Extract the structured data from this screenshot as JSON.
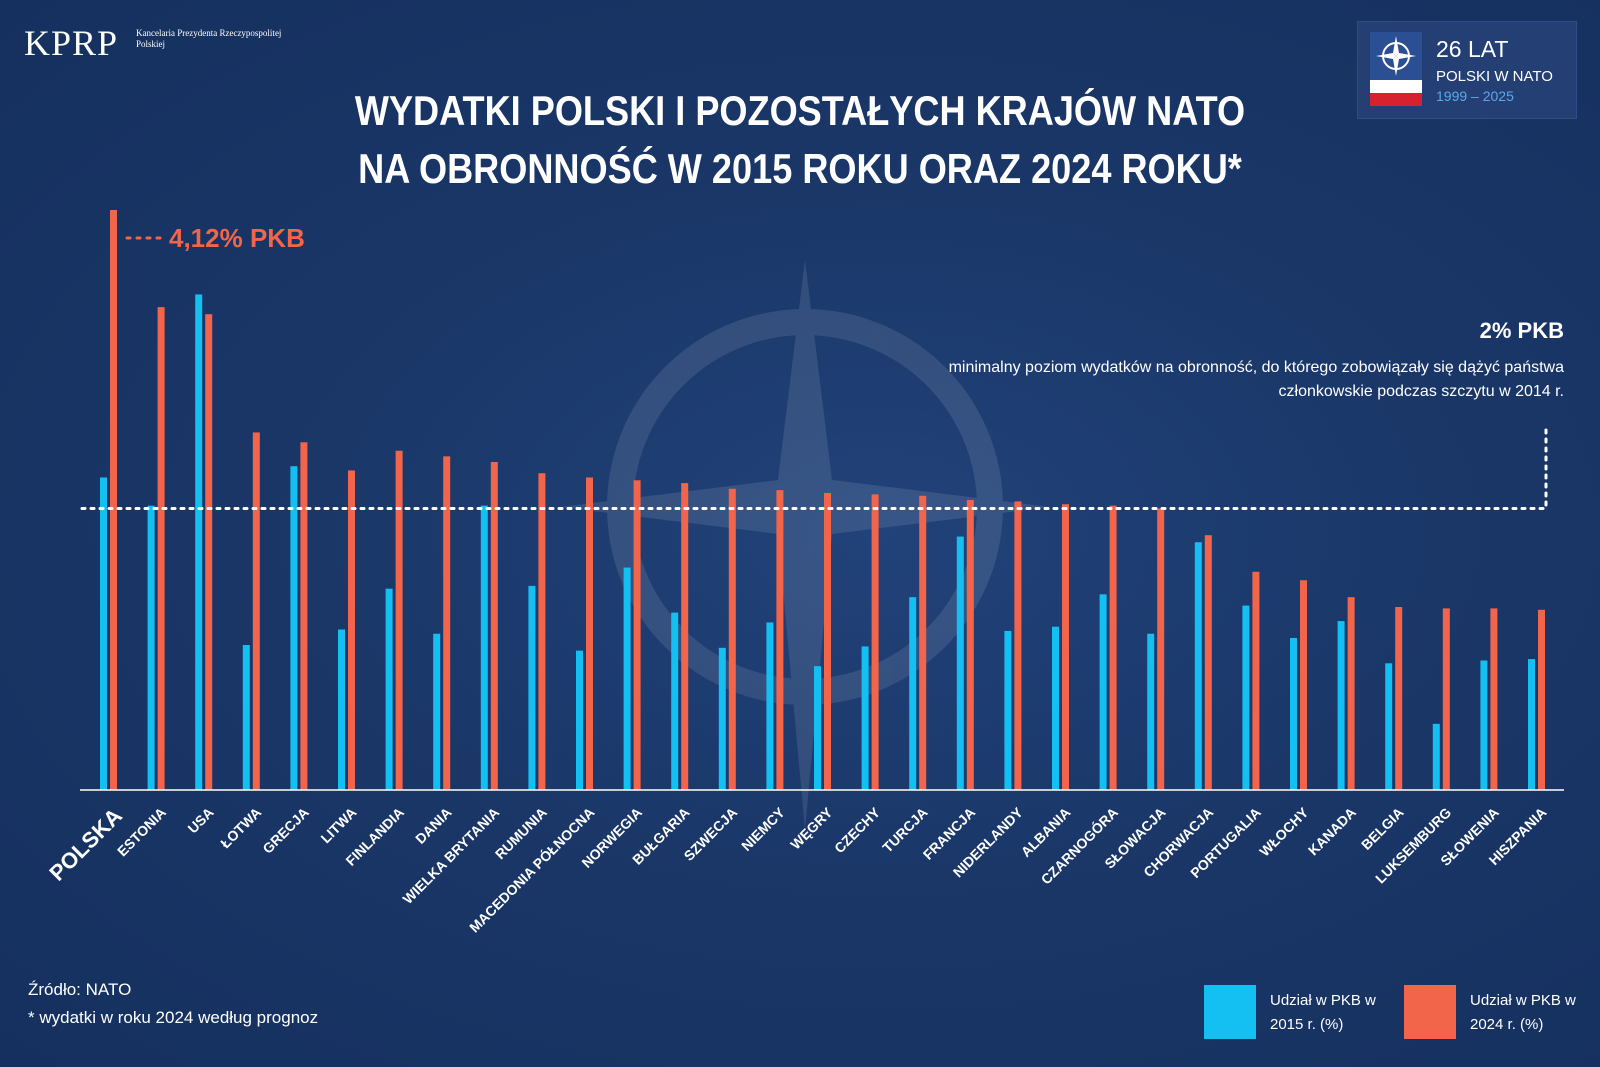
{
  "header": {
    "logo_text": "KPRP",
    "logo_subtitle": "Kancelaria Prezydenta Rzeczypospolitej Polskiej",
    "badge_line1": "26 LAT",
    "badge_line2": "POLSKI W NATO",
    "badge_line3": "1999 – 2025",
    "title_line1": "WYDATKI POLSKI I POZOSTAŁYCH KRAJÓW NATO",
    "title_line2": "NA OBRONNOŚĆ W 2015 ROKU ORAZ 2024 ROKU*"
  },
  "threshold": {
    "title": "2% PKB",
    "description": "minimalny poziom wydatków na obronność, do którego zobowiązały się dążyć państwa członkowskie podczas szczytu w 2014 r."
  },
  "footer": {
    "source": "Źródło: NATO",
    "footnote": "* wydatki w roku 2024 według prognoz"
  },
  "legend": {
    "label_2015": "Udział w PKB w 2015 r. (%)",
    "label_2024": "Udział w PKB w 2024 r. (%)"
  },
  "colors": {
    "background": "#1a3768",
    "series_2015": "#14bff2",
    "series_2024": "#f2654a",
    "annotation": "#f2654a"
  },
  "chart_data": {
    "type": "bar",
    "title": "WYDATKI POLSKI I POZOSTAŁYCH KRAJÓW NATO NA OBRONNOŚĆ W 2015 ROKU ORAZ 2024 ROKU*",
    "categories": [
      "POLSKA",
      "ESTONIA",
      "USA",
      "ŁOTWA",
      "GRECJA",
      "LITWA",
      "FINLANDIA",
      "DANIA",
      "WIELKA BRYTANIA",
      "RUMUNIA",
      "MACEDONIA PÓŁNOCNA",
      "NORWEGIA",
      "BUŁGARIA",
      "SZWECJA",
      "NIEMCY",
      "WĘGRY",
      "CZECHY",
      "TURCJA",
      "FRANCJA",
      "NIDERLANDY",
      "ALBANIA",
      "CZARNOGÓRA",
      "SŁOWACJA",
      "CHORWACJA",
      "PORTUGALIA",
      "WŁOCHY",
      "KANADA",
      "BELGIA",
      "LUKSEMBURG",
      "SŁOWENIA",
      "HISZPANIA"
    ],
    "highlight_category": "POLSKA",
    "series": [
      {
        "name": "Udział w PKB w 2015 r. (%)",
        "color": "#14bff2",
        "values": [
          2.22,
          2.02,
          3.52,
          1.03,
          2.3,
          1.14,
          1.43,
          1.11,
          2.02,
          1.45,
          0.99,
          1.58,
          1.26,
          1.01,
          1.19,
          0.88,
          1.02,
          1.37,
          1.8,
          1.13,
          1.16,
          1.39,
          1.11,
          1.76,
          1.31,
          1.08,
          1.2,
          0.9,
          0.47,
          0.92,
          0.93
        ]
      },
      {
        "name": "Udział w PKB w 2024 r. (%)",
        "color": "#f2654a",
        "values": [
          4.12,
          3.43,
          3.38,
          2.54,
          2.47,
          2.27,
          2.41,
          2.37,
          2.33,
          2.25,
          2.22,
          2.2,
          2.18,
          2.14,
          2.13,
          2.11,
          2.1,
          2.09,
          2.06,
          2.05,
          2.03,
          2.02,
          2.0,
          1.81,
          1.55,
          1.49,
          1.37,
          1.3,
          1.29,
          1.29,
          1.28
        ]
      }
    ],
    "reference_line": {
      "value": 2.0,
      "label": "2% PKB"
    },
    "annotation": {
      "category": "POLSKA",
      "series": 1,
      "text": "4,12% PKB"
    },
    "ylim": [
      0,
      4.12
    ],
    "xlabel": "",
    "ylabel": "",
    "grid": false,
    "legend_position": "bottom-right"
  }
}
